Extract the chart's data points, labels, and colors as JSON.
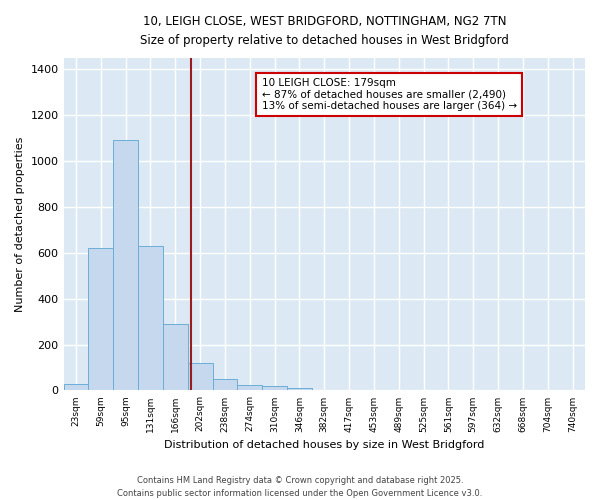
{
  "title_line1": "10, LEIGH CLOSE, WEST BRIDGFORD, NOTTINGHAM, NG2 7TN",
  "title_line2": "Size of property relative to detached houses in West Bridgford",
  "xlabel": "Distribution of detached houses by size in West Bridgford",
  "ylabel": "Number of detached properties",
  "categories": [
    "23sqm",
    "59sqm",
    "95sqm",
    "131sqm",
    "166sqm",
    "202sqm",
    "238sqm",
    "274sqm",
    "310sqm",
    "346sqm",
    "382sqm",
    "417sqm",
    "453sqm",
    "489sqm",
    "525sqm",
    "561sqm",
    "597sqm",
    "632sqm",
    "668sqm",
    "704sqm",
    "740sqm"
  ],
  "values": [
    30,
    620,
    1090,
    630,
    290,
    120,
    48,
    25,
    20,
    10,
    0,
    0,
    0,
    0,
    0,
    0,
    0,
    0,
    0,
    0,
    0
  ],
  "bar_color": "#c5d8ee",
  "bar_edge_color": "#6aaed6",
  "fig_bg_color": "#ffffff",
  "ax_bg_color": "#dce9f5",
  "grid_color": "#ffffff",
  "vline_x": 4.65,
  "vline_color": "#9b1c1c",
  "annotation_text": "10 LEIGH CLOSE: 179sqm\n← 87% of detached houses are smaller (2,490)\n13% of semi-detached houses are larger (364) →",
  "annotation_box_color": "#ffffff",
  "annotation_box_edge": "#cc0000",
  "ylim": [
    0,
    1450
  ],
  "yticks": [
    0,
    200,
    400,
    600,
    800,
    1000,
    1200,
    1400
  ],
  "footer_line1": "Contains HM Land Registry data © Crown copyright and database right 2025.",
  "footer_line2": "Contains public sector information licensed under the Open Government Licence v3.0."
}
